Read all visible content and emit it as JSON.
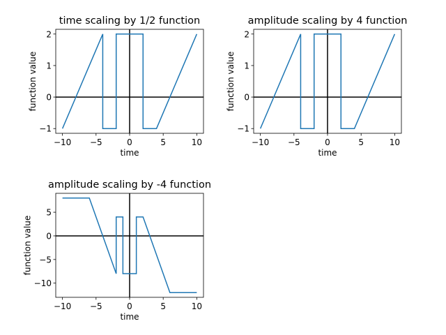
{
  "chart_data": [
    {
      "type": "line",
      "title": "time scaling by 1/2 function",
      "xlabel": "time",
      "ylabel": "function value",
      "xlim": [
        -11,
        11
      ],
      "ylim": [
        -1.15,
        2.15
      ],
      "xticks": [
        -10,
        -5,
        0,
        5,
        10
      ],
      "yticks": [
        -1,
        0,
        1,
        2
      ],
      "xtick_labels": [
        "−10",
        "−5",
        "0",
        "5",
        "10"
      ],
      "ytick_labels": [
        "−1",
        "0",
        "1",
        "2"
      ],
      "grid": false,
      "axes_lines": true,
      "series": [
        {
          "color": "#1f77b4",
          "x": [
            -10,
            -4,
            -4,
            -2,
            -2,
            2,
            2,
            4,
            10
          ],
          "y": [
            -1,
            2,
            -1,
            -1,
            2,
            2,
            -1,
            -1,
            2
          ]
        }
      ]
    },
    {
      "type": "line",
      "title": "amplitude scaling by 4 function",
      "xlabel": "time",
      "ylabel": "function value",
      "xlim": [
        -11,
        11
      ],
      "ylim": [
        -1.15,
        2.15
      ],
      "xticks": [
        -10,
        -5,
        0,
        5,
        10
      ],
      "yticks": [
        -1,
        0,
        1,
        2
      ],
      "xtick_labels": [
        "−10",
        "−5",
        "0",
        "5",
        "10"
      ],
      "ytick_labels": [
        "−1",
        "0",
        "1",
        "2"
      ],
      "grid": false,
      "axes_lines": true,
      "series": [
        {
          "color": "#1f77b4",
          "x": [
            -10,
            -4,
            -4,
            -2,
            -2,
            2,
            2,
            4,
            10
          ],
          "y": [
            -1,
            2,
            -1,
            -1,
            2,
            2,
            -1,
            -1,
            2
          ]
        }
      ]
    },
    {
      "type": "line",
      "title": "amplitude scaling by -4 function",
      "xlabel": "time",
      "ylabel": "function value",
      "xlim": [
        -11,
        11
      ],
      "ylim": [
        -13,
        9
      ],
      "xticks": [
        -10,
        -5,
        0,
        5,
        10
      ],
      "yticks": [
        -10,
        -5,
        0,
        5
      ],
      "xtick_labels": [
        "−10",
        "−5",
        "0",
        "5",
        "10"
      ],
      "ytick_labels": [
        "−10",
        "−5",
        "0",
        "5"
      ],
      "grid": false,
      "axes_lines": true,
      "series": [
        {
          "color": "#1f77b4",
          "x": [
            -10,
            -6,
            -2,
            -2,
            -1,
            -1,
            1,
            1,
            2,
            6,
            10
          ],
          "y": [
            8,
            8,
            -8,
            4,
            4,
            -8,
            -8,
            4,
            4,
            -12,
            -12
          ]
        }
      ]
    }
  ]
}
